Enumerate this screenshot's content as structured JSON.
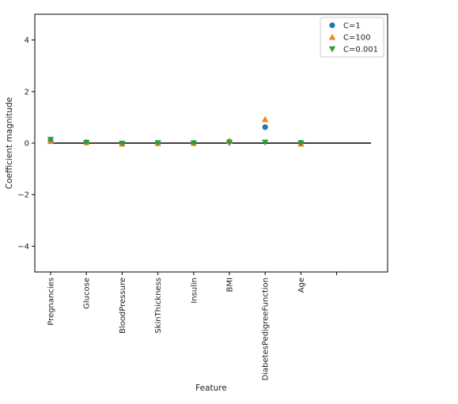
{
  "chart_data": {
    "type": "scatter",
    "title": "",
    "xlabel": "Feature",
    "ylabel": "Coefficient magnitude",
    "ylim": [
      -5,
      5
    ],
    "yticks": [
      4,
      2,
      0,
      -2,
      -4
    ],
    "ytick_labels": [
      "4",
      "2",
      "0",
      "−2",
      "−4"
    ],
    "categories": [
      "Pregnancies",
      "Glucose",
      "BloodPressure",
      "SkinThickness",
      "Insulin",
      "BMI",
      "DiabetesPedigreeFunction",
      "Age"
    ],
    "reference_line": 0,
    "legend_position": "top-right",
    "grid": false,
    "series": [
      {
        "name": "C=1",
        "marker": "circle",
        "color": "#1f77b4",
        "values": [
          0.08,
          0.03,
          -0.02,
          0.0,
          0.0,
          0.06,
          0.62,
          0.01
        ]
      },
      {
        "name": "C=100",
        "marker": "triangle-up",
        "color": "#ff7f0e",
        "values": [
          0.07,
          0.03,
          -0.03,
          -0.01,
          0.0,
          0.08,
          0.92,
          -0.03
        ]
      },
      {
        "name": "C=0.001",
        "marker": "triangle-down",
        "color": "#2ca02c",
        "values": [
          0.14,
          0.02,
          -0.01,
          0.01,
          0.0,
          0.01,
          0.03,
          0.01
        ]
      }
    ]
  }
}
